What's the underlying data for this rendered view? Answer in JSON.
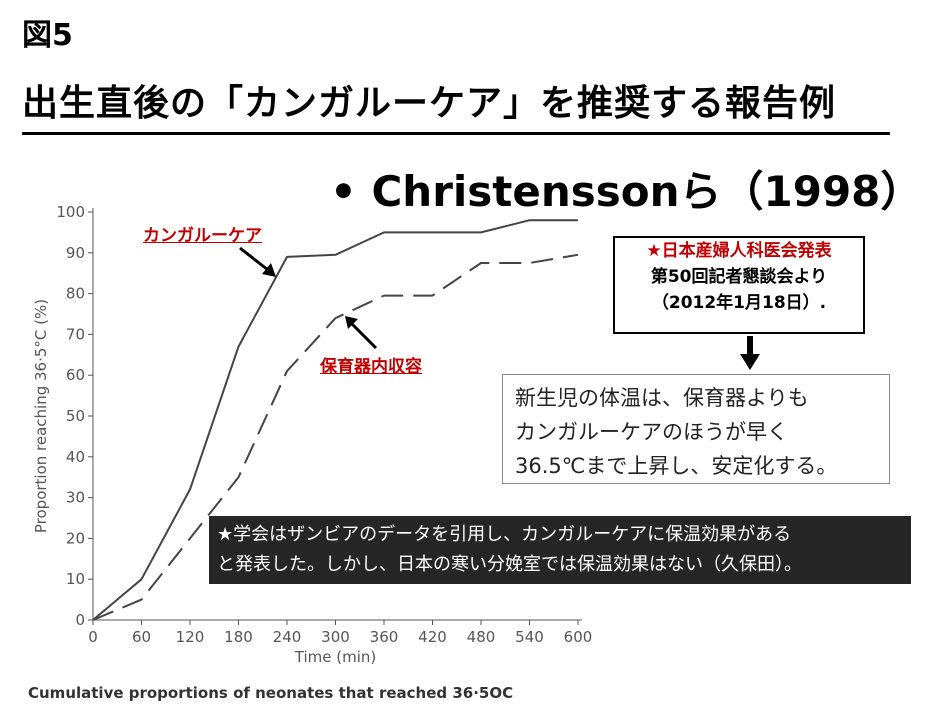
{
  "figure_label": "図5",
  "title": "出生直後の「カンガルーケア」を推奨する報告例",
  "bullet_text": "• Christenssonら（1998）",
  "annotations": {
    "kangaroo_care": "カンガルーケア",
    "incubator": "保育器内収容"
  },
  "notice": {
    "line1": "★日本産婦人科医会発表",
    "line2": "第50回記者懇談会より",
    "line3": "（2012年1月18日）."
  },
  "conclusion": {
    "line1": "新生児の体温は、保育器よりも",
    "line2": "カンガルーケアのほうが早く",
    "line3": "36.5℃まで上昇し、安定化する。"
  },
  "note": {
    "line1": "★学会はザンビアのデータを引用し、カンガルーケアに保温効果がある",
    "line2": "と発表した。しかし、日本の寒い分娩室では保温効果はない（久保田）。"
  },
  "caption": "Cumulative proportions of neonates that reached 36·5OC",
  "chart_data": {
    "type": "line",
    "title": "",
    "xlabel": "Time (min)",
    "ylabel": "Proportion reaching 36·5°C (%)",
    "xlim": [
      0,
      600
    ],
    "ylim": [
      0,
      100
    ],
    "xticks": [
      0,
      60,
      120,
      180,
      240,
      300,
      360,
      420,
      480,
      540,
      600
    ],
    "yticks": [
      0,
      10,
      20,
      30,
      40,
      50,
      60,
      70,
      80,
      90,
      100
    ],
    "grid": false,
    "series": [
      {
        "name": "カンガルーケア",
        "style": "solid",
        "color": "#444444",
        "x": [
          0,
          60,
          120,
          180,
          240,
          300,
          360,
          420,
          480,
          540,
          600
        ],
        "y": [
          0,
          10,
          32,
          67,
          89,
          89.5,
          95,
          95,
          95,
          98,
          98
        ]
      },
      {
        "name": "保育器内収容",
        "style": "dashed",
        "color": "#444444",
        "x": [
          0,
          60,
          120,
          180,
          240,
          300,
          360,
          420,
          480,
          540,
          600
        ],
        "y": [
          0,
          5,
          20,
          35,
          61,
          74,
          79.5,
          79.5,
          87.5,
          87.5,
          89.5
        ]
      }
    ]
  }
}
